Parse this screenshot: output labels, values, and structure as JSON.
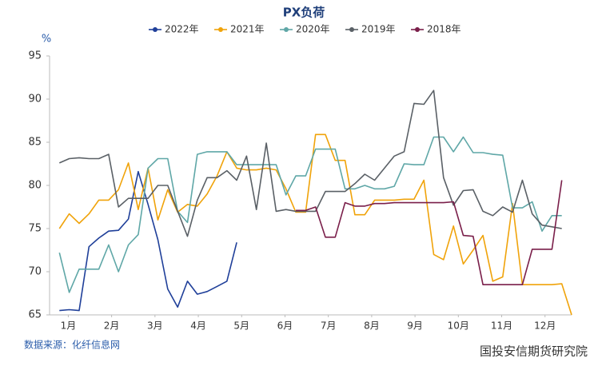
{
  "chart_data": {
    "type": "line",
    "title": "PX负荷",
    "ylabel": "%",
    "source": "数据来源：化纤信息网",
    "watermark": "国投安信期货研究院",
    "x": [
      1,
      2,
      3,
      4,
      5,
      6,
      7,
      8,
      9,
      10,
      11,
      12,
      13,
      14,
      15,
      16,
      17,
      18,
      19,
      20,
      21,
      22,
      23,
      24,
      25,
      26,
      27,
      28,
      29,
      30,
      31,
      32,
      33,
      34,
      35,
      36,
      37,
      38,
      39,
      40,
      41,
      42,
      43,
      44,
      45,
      46,
      47,
      48,
      49,
      50,
      51,
      52,
      53
    ],
    "xlim": [
      0,
      53
    ],
    "xticks": [
      {
        "value": 1.9,
        "label": "1月"
      },
      {
        "value": 6.3,
        "label": "2月"
      },
      {
        "value": 10.7,
        "label": "3月"
      },
      {
        "value": 15.1,
        "label": "4月"
      },
      {
        "value": 19.5,
        "label": "5月"
      },
      {
        "value": 23.9,
        "label": "6月"
      },
      {
        "value": 28.3,
        "label": "7月"
      },
      {
        "value": 32.7,
        "label": "8月"
      },
      {
        "value": 37.1,
        "label": "9月"
      },
      {
        "value": 41.5,
        "label": "10月"
      },
      {
        "value": 45.9,
        "label": "11月"
      },
      {
        "value": 50.3,
        "label": "12月"
      }
    ],
    "ylim": [
      65,
      95
    ],
    "yticks": [
      65,
      70,
      75,
      80,
      85,
      90,
      95
    ],
    "grid": false,
    "series": [
      {
        "name": "2022年",
        "color": "#1f3f99",
        "values": [
          65.5,
          65.6,
          65.5,
          72.9,
          73.9,
          74.7,
          74.8,
          76.1,
          81.6,
          77.8,
          73.7,
          68.0,
          65.9,
          68.9,
          67.4,
          67.7,
          68.3,
          68.9,
          73.4,
          null,
          null,
          null,
          null,
          null,
          null,
          null,
          null,
          null,
          null,
          null,
          null,
          null,
          null,
          null,
          null,
          null,
          null,
          null,
          null,
          null,
          null,
          null,
          null,
          null,
          null,
          null,
          null,
          null,
          null,
          null,
          null,
          null,
          null
        ]
      },
      {
        "name": "2021年",
        "color": "#f0a30a",
        "values": [
          75,
          76.7,
          75.6,
          76.7,
          78.3,
          78.3,
          79.5,
          82.6,
          77.2,
          82,
          76,
          79.5,
          76.9,
          77.8,
          77.6,
          79,
          81.1,
          83.9,
          82,
          81.8,
          81.8,
          82,
          81.8,
          79.6,
          76.9,
          76.9,
          85.9,
          85.9,
          82.9,
          82.9,
          76.6,
          76.6,
          78.3,
          78.3,
          78.3,
          78.4,
          78.4,
          80.6,
          72,
          71.4,
          75.3,
          70.9,
          72.5,
          74.2,
          68.9,
          69.4,
          77.9,
          68.5,
          68.5,
          68.5,
          68.5,
          68.6,
          65
        ]
      },
      {
        "name": "2020年",
        "color": "#5fa7a7",
        "values": [
          72.2,
          67.6,
          70.3,
          70.3,
          70.3,
          73.1,
          70,
          73.1,
          74.3,
          82,
          83.1,
          83.1,
          77,
          75.7,
          83.6,
          83.9,
          83.9,
          83.9,
          82.4,
          82.4,
          82.4,
          82.4,
          82.4,
          78.9,
          81.1,
          81.1,
          84.2,
          84.2,
          84.2,
          79.6,
          79.6,
          80,
          79.6,
          79.6,
          79.9,
          82.5,
          82.4,
          82.4,
          85.6,
          85.6,
          83.9,
          85.6,
          83.8,
          83.8,
          83.6,
          83.5,
          77.4,
          77.4,
          78.1,
          74.7,
          76.5,
          76.5,
          null
        ]
      },
      {
        "name": "2019年",
        "color": "#5a6066",
        "values": [
          82.6,
          83.1,
          83.2,
          83.1,
          83.1,
          83.6,
          77.5,
          78.5,
          78.5,
          78.5,
          80,
          80,
          77,
          74.1,
          78.3,
          80.9,
          80.9,
          81.7,
          80.6,
          83.4,
          77.2,
          84.9,
          77,
          77.2,
          77,
          77,
          77,
          79.3,
          79.3,
          79.3,
          80.2,
          81.3,
          80.6,
          82,
          83.4,
          83.9,
          89.5,
          89.4,
          91,
          80.9,
          77.7,
          79.4,
          79.5,
          77,
          76.5,
          77.5,
          76.9,
          80.6,
          76.7,
          75.4,
          75.2,
          75,
          null
        ]
      },
      {
        "name": "2018年",
        "color": "#7a1f4a",
        "values": [
          null,
          null,
          null,
          null,
          null,
          null,
          null,
          null,
          null,
          null,
          null,
          null,
          null,
          null,
          null,
          null,
          null,
          null,
          null,
          null,
          null,
          null,
          null,
          null,
          77.1,
          77.1,
          77.5,
          74,
          74,
          78,
          77.6,
          77.6,
          77.9,
          77.9,
          78,
          78,
          78,
          78,
          78,
          78,
          78.1,
          74.2,
          74.1,
          68.5,
          68.5,
          68.5,
          68.5,
          68.5,
          72.6,
          72.6,
          72.6,
          80.6,
          null
        ]
      }
    ]
  }
}
